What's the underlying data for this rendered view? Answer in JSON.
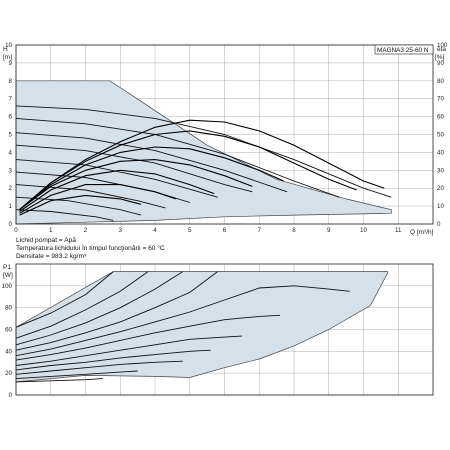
{
  "chart_data": [
    {
      "type": "line",
      "model": "MAGNA3 25-60 N",
      "y_left_label": "H",
      "y_left_unit": "[m]",
      "y_right_label": "eta",
      "y_right_unit": "[%]",
      "x_label": "Q [m³/h]",
      "xlim": [
        0,
        12
      ],
      "ylim": [
        0,
        10
      ],
      "y2lim": [
        0,
        100
      ],
      "x_ticks": [
        "0",
        "1",
        "2",
        "3",
        "4",
        "5",
        "6",
        "7",
        "8",
        "9",
        "10",
        "11"
      ],
      "y_ticks": [
        "0",
        "1",
        "2",
        "3",
        "4",
        "5",
        "6",
        "7",
        "8",
        "9",
        "10"
      ],
      "y2_ticks": [
        "0",
        "10",
        "20",
        "30",
        "40",
        "50",
        "60",
        "70",
        "80",
        "90",
        "100"
      ],
      "grid": true,
      "envelope": [
        [
          0,
          8
        ],
        [
          2.7,
          8
        ],
        [
          3.8,
          6.6
        ],
        [
          5.5,
          4.4
        ],
        [
          7.5,
          2.5
        ],
        [
          9.5,
          1.4
        ],
        [
          10.8,
          0.8
        ],
        [
          10.8,
          0.6
        ],
        [
          8,
          0.5
        ],
        [
          6,
          0.4
        ],
        [
          4,
          0.2
        ],
        [
          2,
          0.1
        ],
        [
          0,
          0
        ]
      ],
      "head_curves": [
        [
          [
            0,
            6.6
          ],
          [
            2,
            6.4
          ],
          [
            4,
            5.9
          ],
          [
            6,
            5.0
          ],
          [
            8,
            3.6
          ],
          [
            10,
            2.0
          ],
          [
            10.8,
            1.5
          ]
        ],
        [
          [
            0,
            5.9
          ],
          [
            2,
            5.6
          ],
          [
            4,
            5.0
          ],
          [
            6,
            3.9
          ],
          [
            8,
            2.4
          ],
          [
            9.3,
            1.5
          ]
        ],
        [
          [
            0,
            5.1
          ],
          [
            2,
            4.8
          ],
          [
            4,
            4.1
          ],
          [
            6,
            3.0
          ],
          [
            7.8,
            1.8
          ]
        ],
        [
          [
            0,
            4.4
          ],
          [
            2,
            4.1
          ],
          [
            4,
            3.4
          ],
          [
            6,
            2.2
          ],
          [
            6.8,
            1.8
          ]
        ],
        [
          [
            0,
            3.6
          ],
          [
            2,
            3.3
          ],
          [
            4,
            2.5
          ],
          [
            5.8,
            1.5
          ]
        ],
        [
          [
            0,
            2.9
          ],
          [
            2,
            2.6
          ],
          [
            4,
            1.8
          ],
          [
            5.0,
            1.2
          ]
        ],
        [
          [
            0,
            2.2
          ],
          [
            2,
            1.9
          ],
          [
            3.5,
            1.3
          ],
          [
            4.3,
            0.9
          ]
        ],
        [
          [
            0,
            1.5
          ],
          [
            1.5,
            1.3
          ],
          [
            3,
            0.8
          ],
          [
            3.6,
            0.5
          ]
        ],
        [
          [
            0,
            0.8
          ],
          [
            1,
            0.7
          ],
          [
            2.3,
            0.4
          ],
          [
            2.8,
            0.2
          ]
        ]
      ],
      "efficiency_curves": [
        [
          [
            0.1,
            0.8
          ],
          [
            1,
            2.3
          ],
          [
            2,
            3.6
          ],
          [
            3,
            4.6
          ],
          [
            4,
            5.4
          ],
          [
            5,
            5.8
          ],
          [
            6,
            5.7
          ],
          [
            7,
            5.2
          ],
          [
            8,
            4.4
          ],
          [
            9,
            3.4
          ],
          [
            10,
            2.4
          ],
          [
            10.6,
            2.0
          ]
        ],
        [
          [
            0.1,
            0.8
          ],
          [
            1,
            2.3
          ],
          [
            2,
            3.5
          ],
          [
            3,
            4.4
          ],
          [
            4,
            5.0
          ],
          [
            5,
            5.2
          ],
          [
            6,
            4.9
          ],
          [
            7,
            4.3
          ],
          [
            8,
            3.4
          ],
          [
            9,
            2.5
          ],
          [
            9.8,
            1.9
          ]
        ],
        [
          [
            0.1,
            0.8
          ],
          [
            1,
            2.2
          ],
          [
            2,
            3.3
          ],
          [
            3,
            4.0
          ],
          [
            4,
            4.3
          ],
          [
            5,
            4.2
          ],
          [
            6,
            3.7
          ],
          [
            7,
            3.0
          ],
          [
            7.7,
            2.4
          ]
        ],
        [
          [
            0.1,
            0.8
          ],
          [
            1,
            2.1
          ],
          [
            2,
            3.0
          ],
          [
            3,
            3.5
          ],
          [
            4,
            3.6
          ],
          [
            5,
            3.3
          ],
          [
            6,
            2.7
          ],
          [
            6.8,
            2.1
          ]
        ],
        [
          [
            0.1,
            0.7
          ],
          [
            1,
            1.9
          ],
          [
            2,
            2.7
          ],
          [
            3,
            3.0
          ],
          [
            4,
            2.8
          ],
          [
            5,
            2.2
          ],
          [
            5.7,
            1.7
          ]
        ],
        [
          [
            0.1,
            0.6
          ],
          [
            1,
            1.6
          ],
          [
            2,
            2.2
          ],
          [
            3,
            2.2
          ],
          [
            4,
            1.8
          ],
          [
            4.6,
            1.4
          ]
        ],
        [
          [
            0.1,
            0.5
          ],
          [
            1,
            1.3
          ],
          [
            2,
            1.6
          ],
          [
            3,
            1.4
          ],
          [
            3.6,
            1.1
          ]
        ]
      ]
    },
    {
      "type": "line",
      "y_label": "P1",
      "y_unit": "[W]",
      "xlim": [
        0,
        12
      ],
      "ylim": [
        0,
        120
      ],
      "y_ticks": [
        "0",
        "20",
        "40",
        "60",
        "80",
        "100"
      ],
      "grid": true,
      "envelope": [
        [
          0,
          12
        ],
        [
          2,
          18
        ],
        [
          4,
          17
        ],
        [
          5,
          16
        ],
        [
          6,
          25
        ],
        [
          7,
          33
        ],
        [
          8,
          45
        ],
        [
          9,
          60
        ],
        [
          10.2,
          82
        ],
        [
          10.7,
          112
        ],
        [
          10.7,
          113
        ],
        [
          2.8,
          113
        ],
        [
          0,
          62
        ]
      ],
      "power_curves": [
        [
          [
            0,
            62
          ],
          [
            1,
            75
          ],
          [
            2,
            92
          ],
          [
            2.8,
            113
          ]
        ],
        [
          [
            0,
            52
          ],
          [
            1,
            63
          ],
          [
            2,
            78
          ],
          [
            3,
            95
          ],
          [
            3.8,
            113
          ]
        ],
        [
          [
            0,
            46
          ],
          [
            1,
            55
          ],
          [
            2,
            66
          ],
          [
            3,
            80
          ],
          [
            4,
            97
          ],
          [
            4.8,
            113
          ]
        ],
        [
          [
            0,
            41
          ],
          [
            1,
            48
          ],
          [
            2,
            57
          ],
          [
            3,
            67
          ],
          [
            4,
            80
          ],
          [
            5,
            94
          ],
          [
            5.8,
            113
          ]
        ],
        [
          [
            0,
            36
          ],
          [
            1,
            42
          ],
          [
            2,
            50
          ],
          [
            3,
            58
          ],
          [
            4,
            67
          ],
          [
            5,
            76
          ],
          [
            6,
            87
          ],
          [
            7,
            98
          ],
          [
            8,
            100
          ],
          [
            9,
            97
          ],
          [
            9.6,
            95
          ]
        ],
        [
          [
            0,
            32
          ],
          [
            1,
            37
          ],
          [
            2,
            43
          ],
          [
            3,
            50
          ],
          [
            4,
            57
          ],
          [
            5,
            63
          ],
          [
            6,
            69
          ],
          [
            7,
            72
          ],
          [
            7.6,
            73
          ]
        ],
        [
          [
            0,
            27
          ],
          [
            1,
            31
          ],
          [
            2,
            36
          ],
          [
            3,
            41
          ],
          [
            4,
            46
          ],
          [
            5,
            51
          ],
          [
            6,
            53
          ],
          [
            6.5,
            54
          ]
        ],
        [
          [
            0,
            23
          ],
          [
            1,
            27
          ],
          [
            2,
            30
          ],
          [
            3,
            34
          ],
          [
            4,
            37
          ],
          [
            5,
            40
          ],
          [
            5.6,
            41
          ]
        ],
        [
          [
            0,
            19
          ],
          [
            1,
            22
          ],
          [
            2,
            25
          ],
          [
            3,
            28
          ],
          [
            4,
            30
          ],
          [
            4.8,
            31
          ]
        ],
        [
          [
            0,
            15
          ],
          [
            1,
            17
          ],
          [
            2,
            19
          ],
          [
            3,
            21
          ],
          [
            3.5,
            22
          ]
        ],
        [
          [
            0,
            12
          ],
          [
            1,
            13
          ],
          [
            2,
            14
          ],
          [
            2.5,
            15
          ]
        ]
      ]
    }
  ],
  "info": {
    "line1": "Lichid pompat = Apă",
    "line2": "Temperatura lichidului în timpul funcţionării = 60 °C",
    "line3": "Densitate = 983.2 kg/m³"
  }
}
